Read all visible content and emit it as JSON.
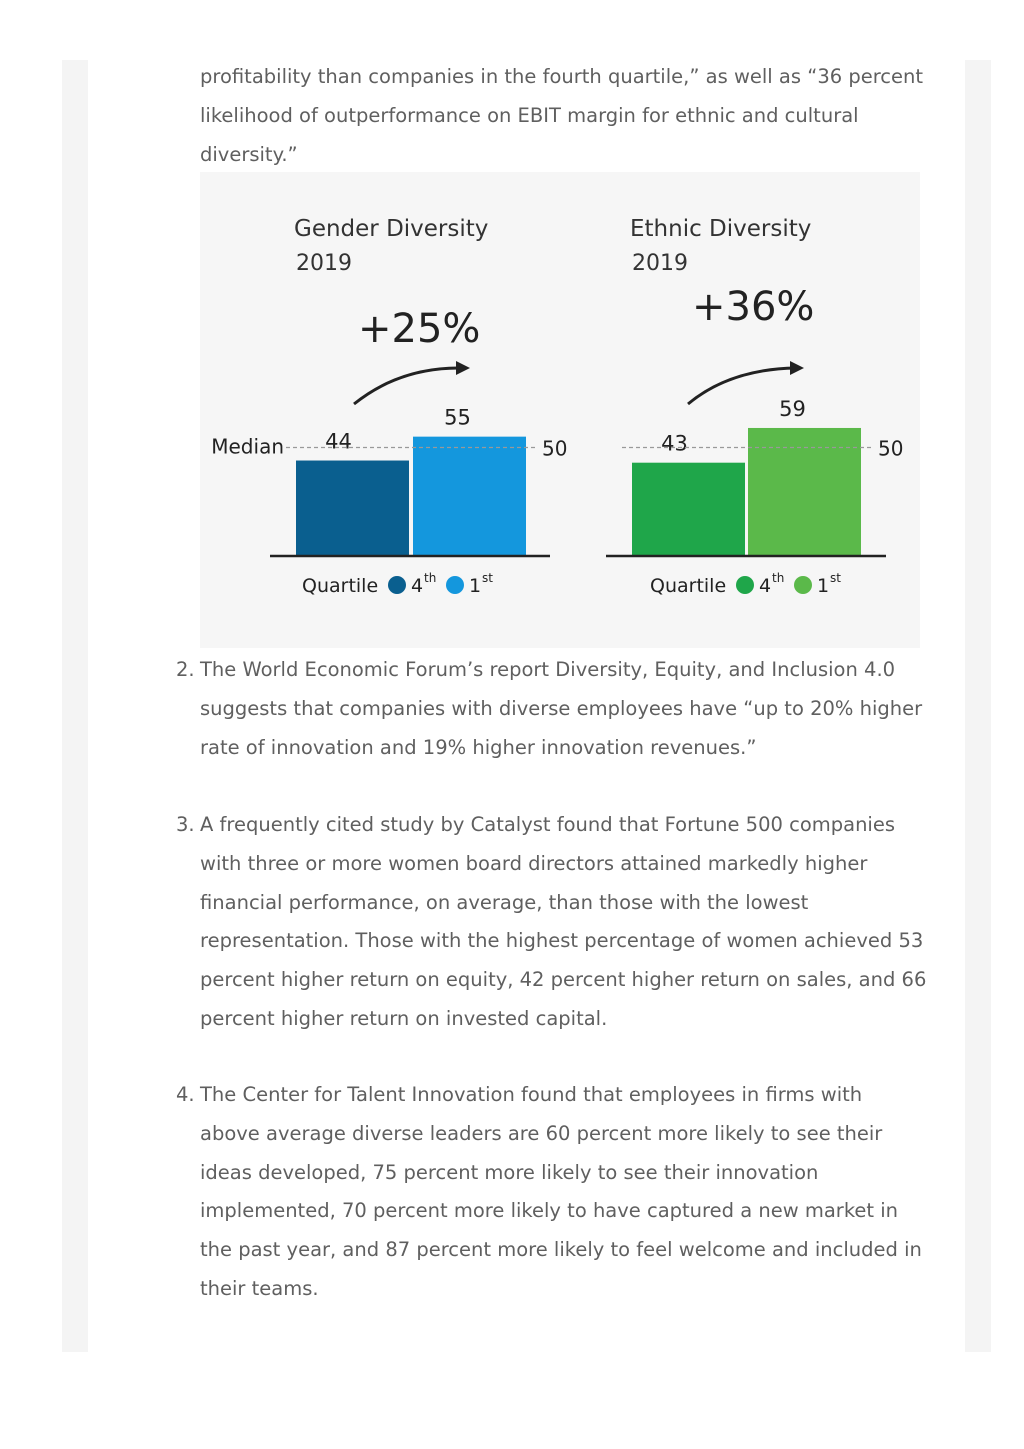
{
  "intro": {
    "lines": [
      "profitability than companies in the fourth quartile,” as well as “36 percent",
      "likelihood of outperformance on EBIT margin for ethnic and cultural",
      "diversity.”"
    ]
  },
  "chart_data": [
    {
      "type": "bar",
      "title": "Gender Diversity",
      "subtitle": "2019",
      "annotation": "+25%",
      "median_label": "Median",
      "median_value": 50,
      "axis_label": "Quartile",
      "series": [
        {
          "name": "4th",
          "value": 44,
          "color": "#0a5f8f"
        },
        {
          "name": "1st",
          "value": 55,
          "color": "#1497dd"
        }
      ],
      "legend": [
        {
          "marker": "4",
          "sup": "th",
          "color": "#0a5f8f"
        },
        {
          "marker": "1",
          "sup": "st",
          "color": "#1497dd"
        }
      ]
    },
    {
      "type": "bar",
      "title": "Ethnic Diversity",
      "subtitle": "2019",
      "annotation": "+36%",
      "median_label": "",
      "median_value": 50,
      "axis_label": "Quartile",
      "series": [
        {
          "name": "4th",
          "value": 43,
          "color": "#1fa64a"
        },
        {
          "name": "1st",
          "value": 59,
          "color": "#5bb94a"
        }
      ],
      "legend": [
        {
          "marker": "4",
          "sup": "th",
          "color": "#1fa64a"
        },
        {
          "marker": "1",
          "sup": "st",
          "color": "#5bb94a"
        }
      ]
    }
  ],
  "items": [
    {
      "number": "2.",
      "lines": [
        "The World Economic Forum’s report Diversity, Equity, and Inclusion 4.0",
        "suggests that companies with diverse employees have “up to 20% higher",
        "rate of innovation and 19% higher innovation revenues.”"
      ]
    },
    {
      "number": "3.",
      "lines": [
        "A frequently cited study by Catalyst found that Fortune 500 companies",
        "with three or more women board directors attained markedly higher",
        "financial performance, on average, than those with the lowest",
        "representation. Those with the highest percentage of women achieved 53",
        "percent higher return on equity, 42 percent higher return on sales, and 66",
        "percent higher return on invested capital."
      ]
    },
    {
      "number": "4.",
      "lines": [
        "The Center for Talent Innovation found that employees in firms with",
        "above average diverse leaders are 60 percent more likely to see their",
        "ideas developed, 75 percent more likely to see their innovation",
        "implemented, 70 percent more likely to have captured a new market in",
        "the past year, and 87 percent more likely to feel welcome and included in",
        "their teams."
      ]
    }
  ]
}
